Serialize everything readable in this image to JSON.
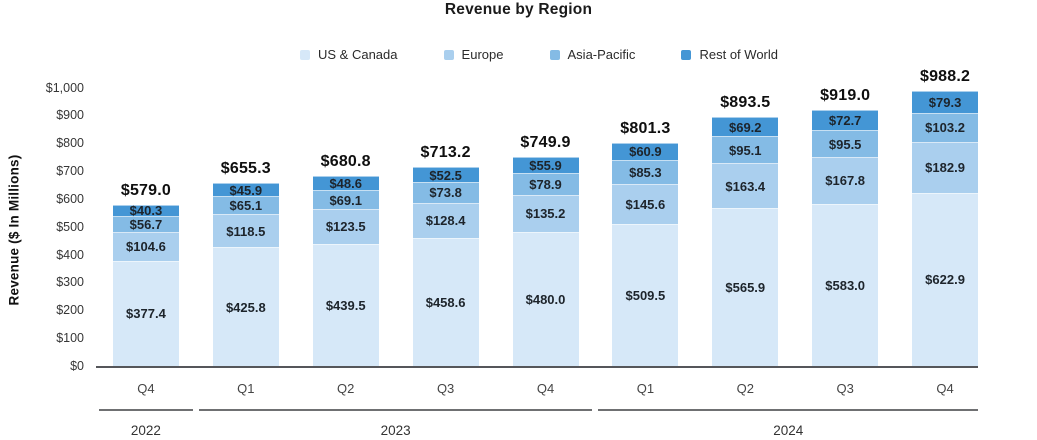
{
  "chart_data": {
    "type": "bar",
    "stacked": true,
    "title": "Revenue by Region",
    "ylabel": "Revenue ($ In Millions)",
    "ylim": [
      0,
      1000
    ],
    "ytick_step": 100,
    "ytick_labels": [
      "$0",
      "$100",
      "$200",
      "$300",
      "$400",
      "$500",
      "$600",
      "$700",
      "$800",
      "$900",
      "$1,000"
    ],
    "grid": false,
    "legend_position": "top",
    "categories": [
      "Q4",
      "Q1",
      "Q2",
      "Q3",
      "Q4",
      "Q1",
      "Q2",
      "Q3",
      "Q4"
    ],
    "year_groups": [
      {
        "label": "2022",
        "first": 0,
        "last": 0
      },
      {
        "label": "2023",
        "first": 1,
        "last": 4
      },
      {
        "label": "2024",
        "first": 5,
        "last": 8
      }
    ],
    "series": [
      {
        "name": "US & Canada",
        "color": "#d6e8f8",
        "values": [
          377.4,
          425.8,
          439.5,
          458.6,
          480.0,
          509.5,
          565.9,
          583.0,
          622.9
        ]
      },
      {
        "name": "Europe",
        "color": "#aacfee",
        "values": [
          104.6,
          118.5,
          123.5,
          128.4,
          135.2,
          145.6,
          163.4,
          167.8,
          182.9
        ]
      },
      {
        "name": "Asia-Pacific",
        "color": "#84bbe5",
        "values": [
          56.7,
          65.1,
          69.1,
          73.8,
          78.9,
          85.3,
          95.1,
          95.5,
          103.2
        ]
      },
      {
        "name": "Rest of World",
        "color": "#4496d5",
        "values": [
          40.3,
          45.9,
          48.6,
          52.5,
          55.9,
          60.9,
          69.2,
          72.7,
          79.3
        ]
      }
    ],
    "total_labels": [
      "$579.0",
      "$655.3",
      "$680.8",
      "$713.2",
      "$749.9",
      "$801.3",
      "$893.5",
      "$919.0",
      "$988.2"
    ],
    "colors": {
      "axis_line": "#55565a",
      "bracket_line": "#6f7072",
      "text_dark": "#1b1b1b"
    }
  }
}
